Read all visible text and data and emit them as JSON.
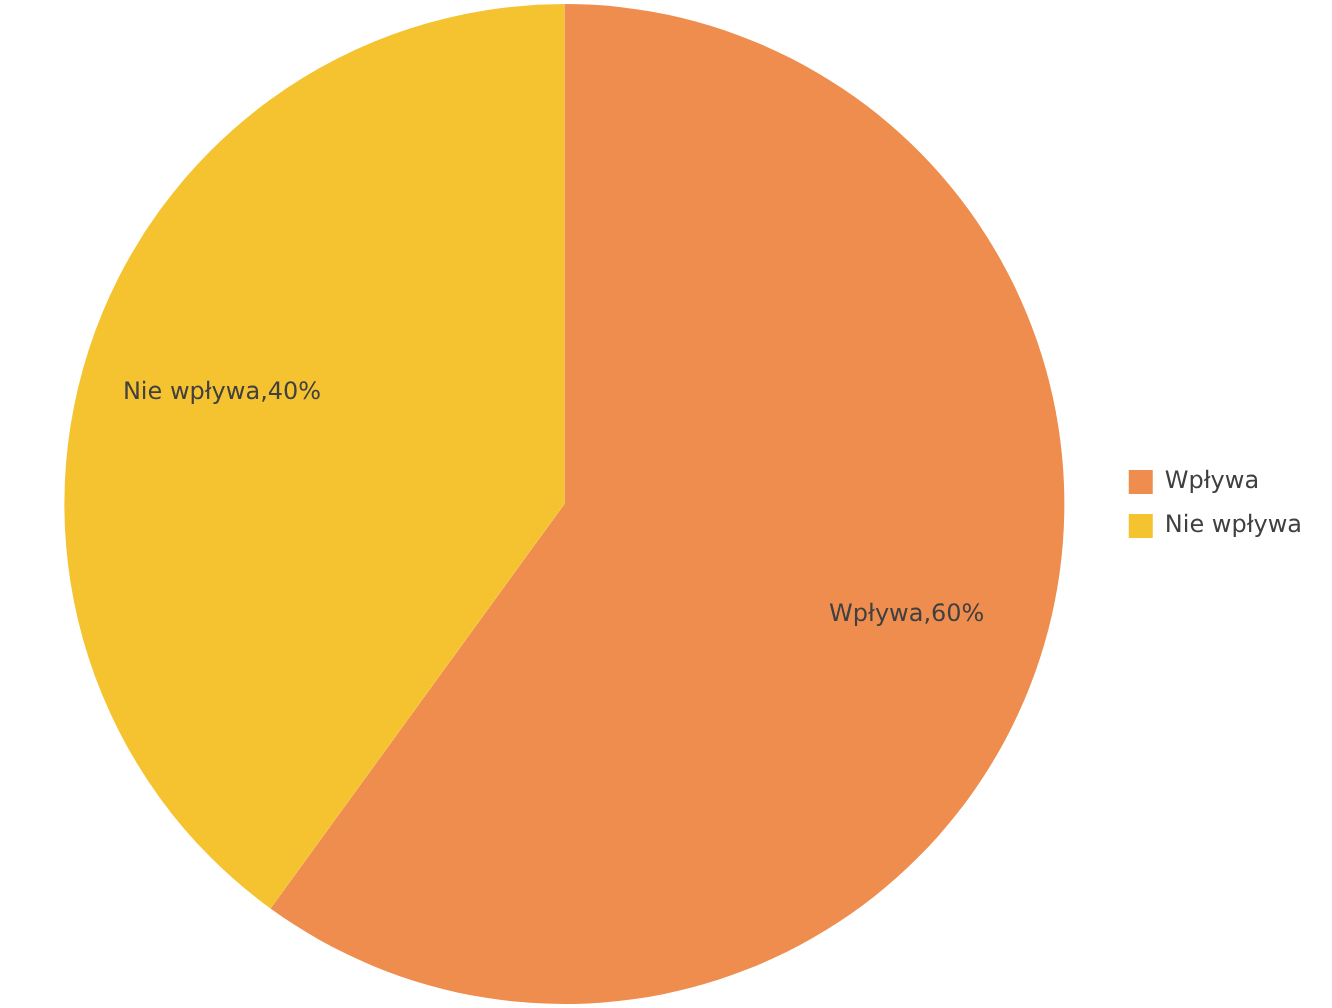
{
  "chart_data": {
    "type": "pie",
    "categories": [
      "Wpływa",
      "Nie wpływa"
    ],
    "values": [
      60,
      40
    ],
    "colors": [
      "#ef8d4e",
      "#f5c230"
    ],
    "value_labels": [
      "Wpływa,60%",
      "Nie wpływa,40%"
    ],
    "legend": "right"
  }
}
